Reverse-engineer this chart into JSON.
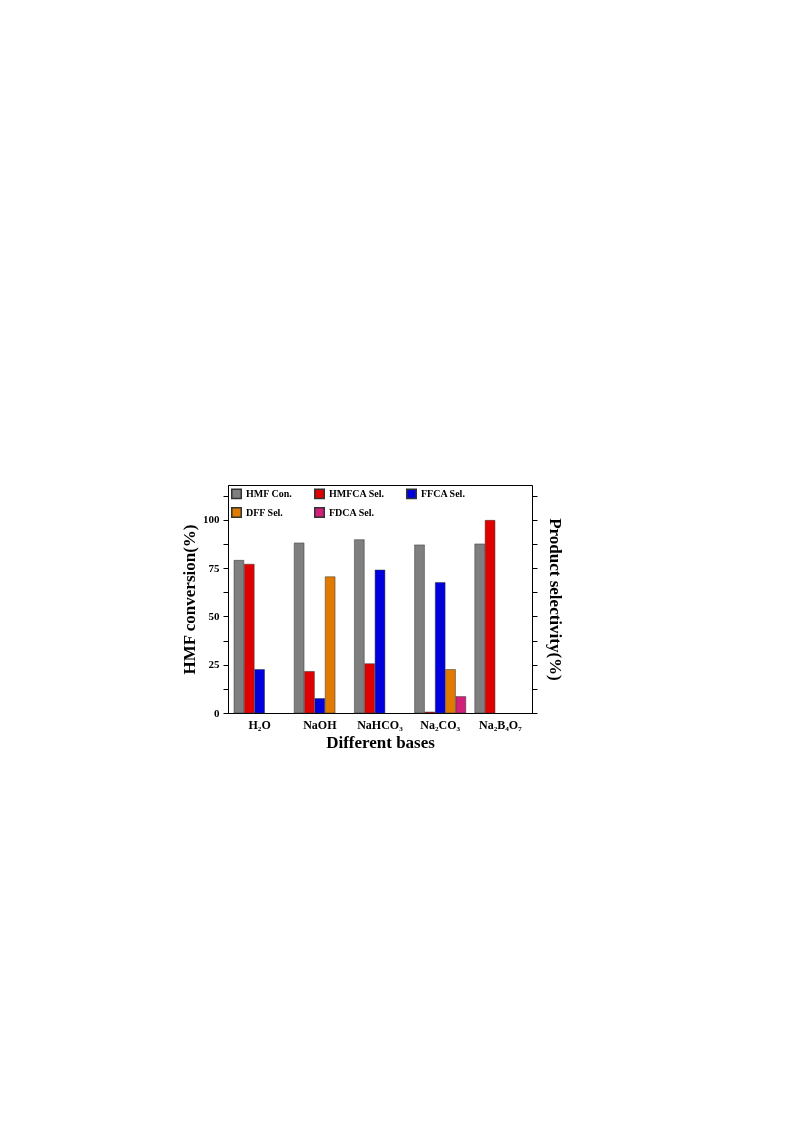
{
  "chart_data": {
    "type": "bar",
    "xlabel": "Different bases",
    "ylabel": "HMF conversion(%)",
    "y2label": "Product selectivity(%)",
    "categories": [
      "H₂O",
      "NaOH",
      "NaHCO₃",
      "Na₂CO₃",
      "Na₂B₄O₇"
    ],
    "series": [
      {
        "name": "HMF Con.",
        "color": "#7f7f7f",
        "values": [
          79,
          88,
          89.7,
          87,
          87.5
        ]
      },
      {
        "name": "HMFCA Sel.",
        "color": "#e00000",
        "values": [
          77,
          21.5,
          25.5,
          0.5,
          99.7
        ]
      },
      {
        "name": "FFCA Sel.",
        "color": "#0000dd",
        "values": [
          22.5,
          7.5,
          74,
          67.5,
          null
        ]
      },
      {
        "name": "DFF Sel.",
        "color": "#e07a00",
        "values": [
          null,
          70.5,
          null,
          22.5,
          null
        ]
      },
      {
        "name": "FDCA Sel.",
        "color": "#d0207a",
        "values": [
          null,
          null,
          null,
          8.5,
          null
        ]
      }
    ],
    "ylim": [
      0,
      118
    ],
    "yticks": [
      0,
      {
        "value": 12.5,
        "label": null
      },
      25,
      {
        "value": 37.5,
        "label": null
      },
      50,
      {
        "value": 62.5,
        "label": null
      },
      75,
      {
        "value": 87.5,
        "label": null
      },
      100,
      {
        "value": 112.5,
        "label": null
      }
    ],
    "legend": "top left",
    "grid": false
  }
}
